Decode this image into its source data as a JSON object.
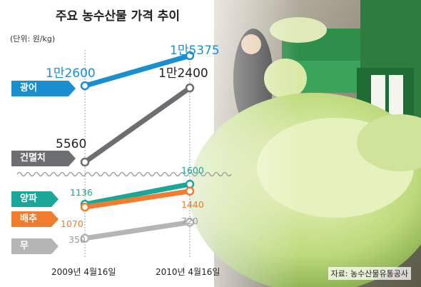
{
  "title": "주요 농수산물 가격 추이",
  "unit_label": "(단위: 원/kg)",
  "source_label": "자료: 농수산물유통공사",
  "chart_data": {
    "type": "line",
    "categories": [
      "2009년 4월16일",
      "2010년 4월16일"
    ],
    "series": [
      {
        "name": "광어",
        "values": [
          12600,
          15375
        ],
        "labels": [
          "1만2600",
          "1만5375"
        ],
        "color": "#1a8fd0"
      },
      {
        "name": "건멸치",
        "values": [
          5560,
          12400
        ],
        "labels": [
          "5560",
          "1만2400"
        ],
        "color": "#6d6e71"
      },
      {
        "name": "양파",
        "values": [
          1136,
          1600
        ],
        "labels": [
          "1136",
          "1600"
        ],
        "color": "#1aa79a"
      },
      {
        "name": "배추",
        "values": [
          1070,
          1440
        ],
        "labels": [
          "1070",
          "1440"
        ],
        "color": "#f07c30"
      },
      {
        "name": "무",
        "values": [
          350,
          720
        ],
        "labels": [
          "350",
          "720"
        ],
        "color": "#b5b5b5"
      }
    ],
    "axis_break": true,
    "legend": "left labels"
  }
}
